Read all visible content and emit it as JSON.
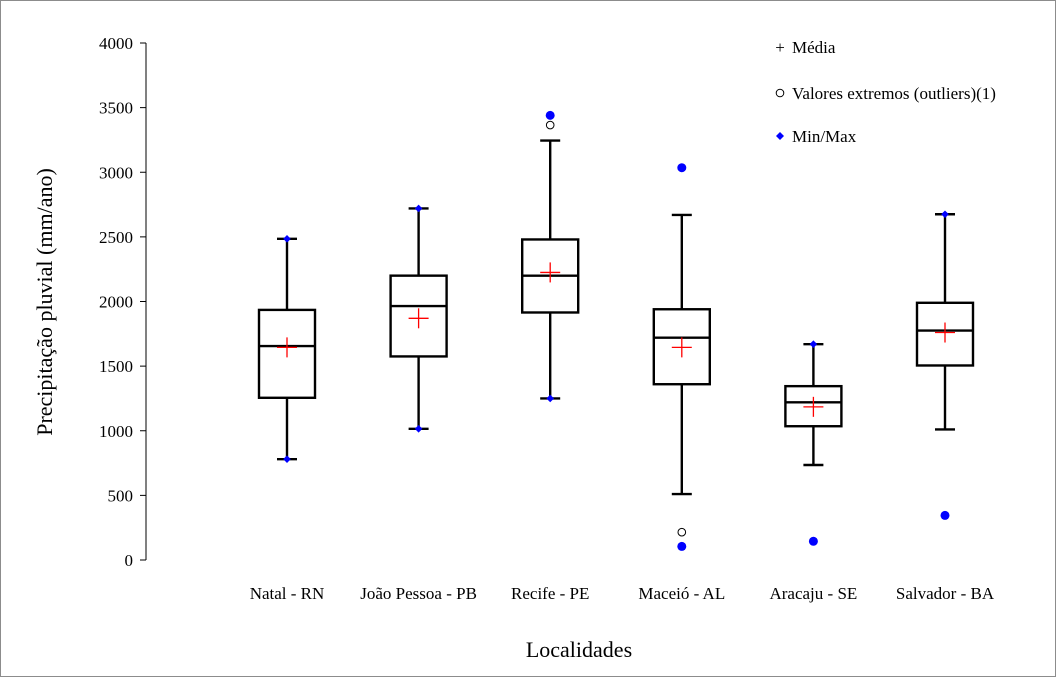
{
  "chart_data": {
    "type": "box",
    "title": "",
    "xlabel": "Localidades",
    "ylabel": "Precipitação pluvial (mm/ano)",
    "ylim": [
      0,
      4000
    ],
    "yticks": [
      0,
      500,
      1000,
      1500,
      2000,
      2500,
      3000,
      3500,
      4000
    ],
    "grid": false,
    "legend_position": "top-right",
    "legend": [
      {
        "label": "Média",
        "marker": "plus",
        "color": "#ff0000"
      },
      {
        "label": "Valores extremos (outliers)(1)",
        "marker": "open-circle",
        "color": "#000000"
      },
      {
        "label": "Min/Max",
        "marker": "diamond",
        "color": "#0000ff"
      }
    ],
    "categories": [
      "Natal - RN",
      "João Pessoa - PB",
      "Recife - PE",
      "Maceió - AL",
      "Aracaju - SE",
      "Salvador - BA"
    ],
    "boxes": [
      {
        "whisker_low": 780,
        "q1": 1255,
        "median": 1655,
        "q3": 1935,
        "whisker_high": 2485,
        "mean": 1645,
        "min": 780,
        "max": 2485,
        "outliers": []
      },
      {
        "whisker_low": 1015,
        "q1": 1575,
        "median": 1965,
        "q3": 2200,
        "whisker_high": 2720,
        "mean": 1870,
        "min": 1015,
        "max": 2720,
        "outliers": []
      },
      {
        "whisker_low": 1250,
        "q1": 1915,
        "median": 2200,
        "q3": 2480,
        "whisker_high": 3245,
        "mean": 2225,
        "min": 1250,
        "max": 3440,
        "outliers": [
          3365
        ]
      },
      {
        "whisker_low": 510,
        "q1": 1360,
        "median": 1720,
        "q3": 1940,
        "whisker_high": 2670,
        "mean": 1645,
        "min": 105,
        "max": 3035,
        "outliers": [
          215
        ]
      },
      {
        "whisker_low": 735,
        "q1": 1035,
        "median": 1220,
        "q3": 1345,
        "whisker_high": 1670,
        "mean": 1185,
        "min": 145,
        "max": 1670,
        "outliers": []
      },
      {
        "whisker_low": 1010,
        "q1": 1505,
        "median": 1775,
        "q3": 1990,
        "whisker_high": 2675,
        "mean": 1760,
        "min": 345,
        "max": 2675,
        "outliers": []
      }
    ],
    "colors": {
      "box": "#000000",
      "mean": "#ff0000",
      "minmax": "#0000ff",
      "outlier": "#000000"
    }
  }
}
